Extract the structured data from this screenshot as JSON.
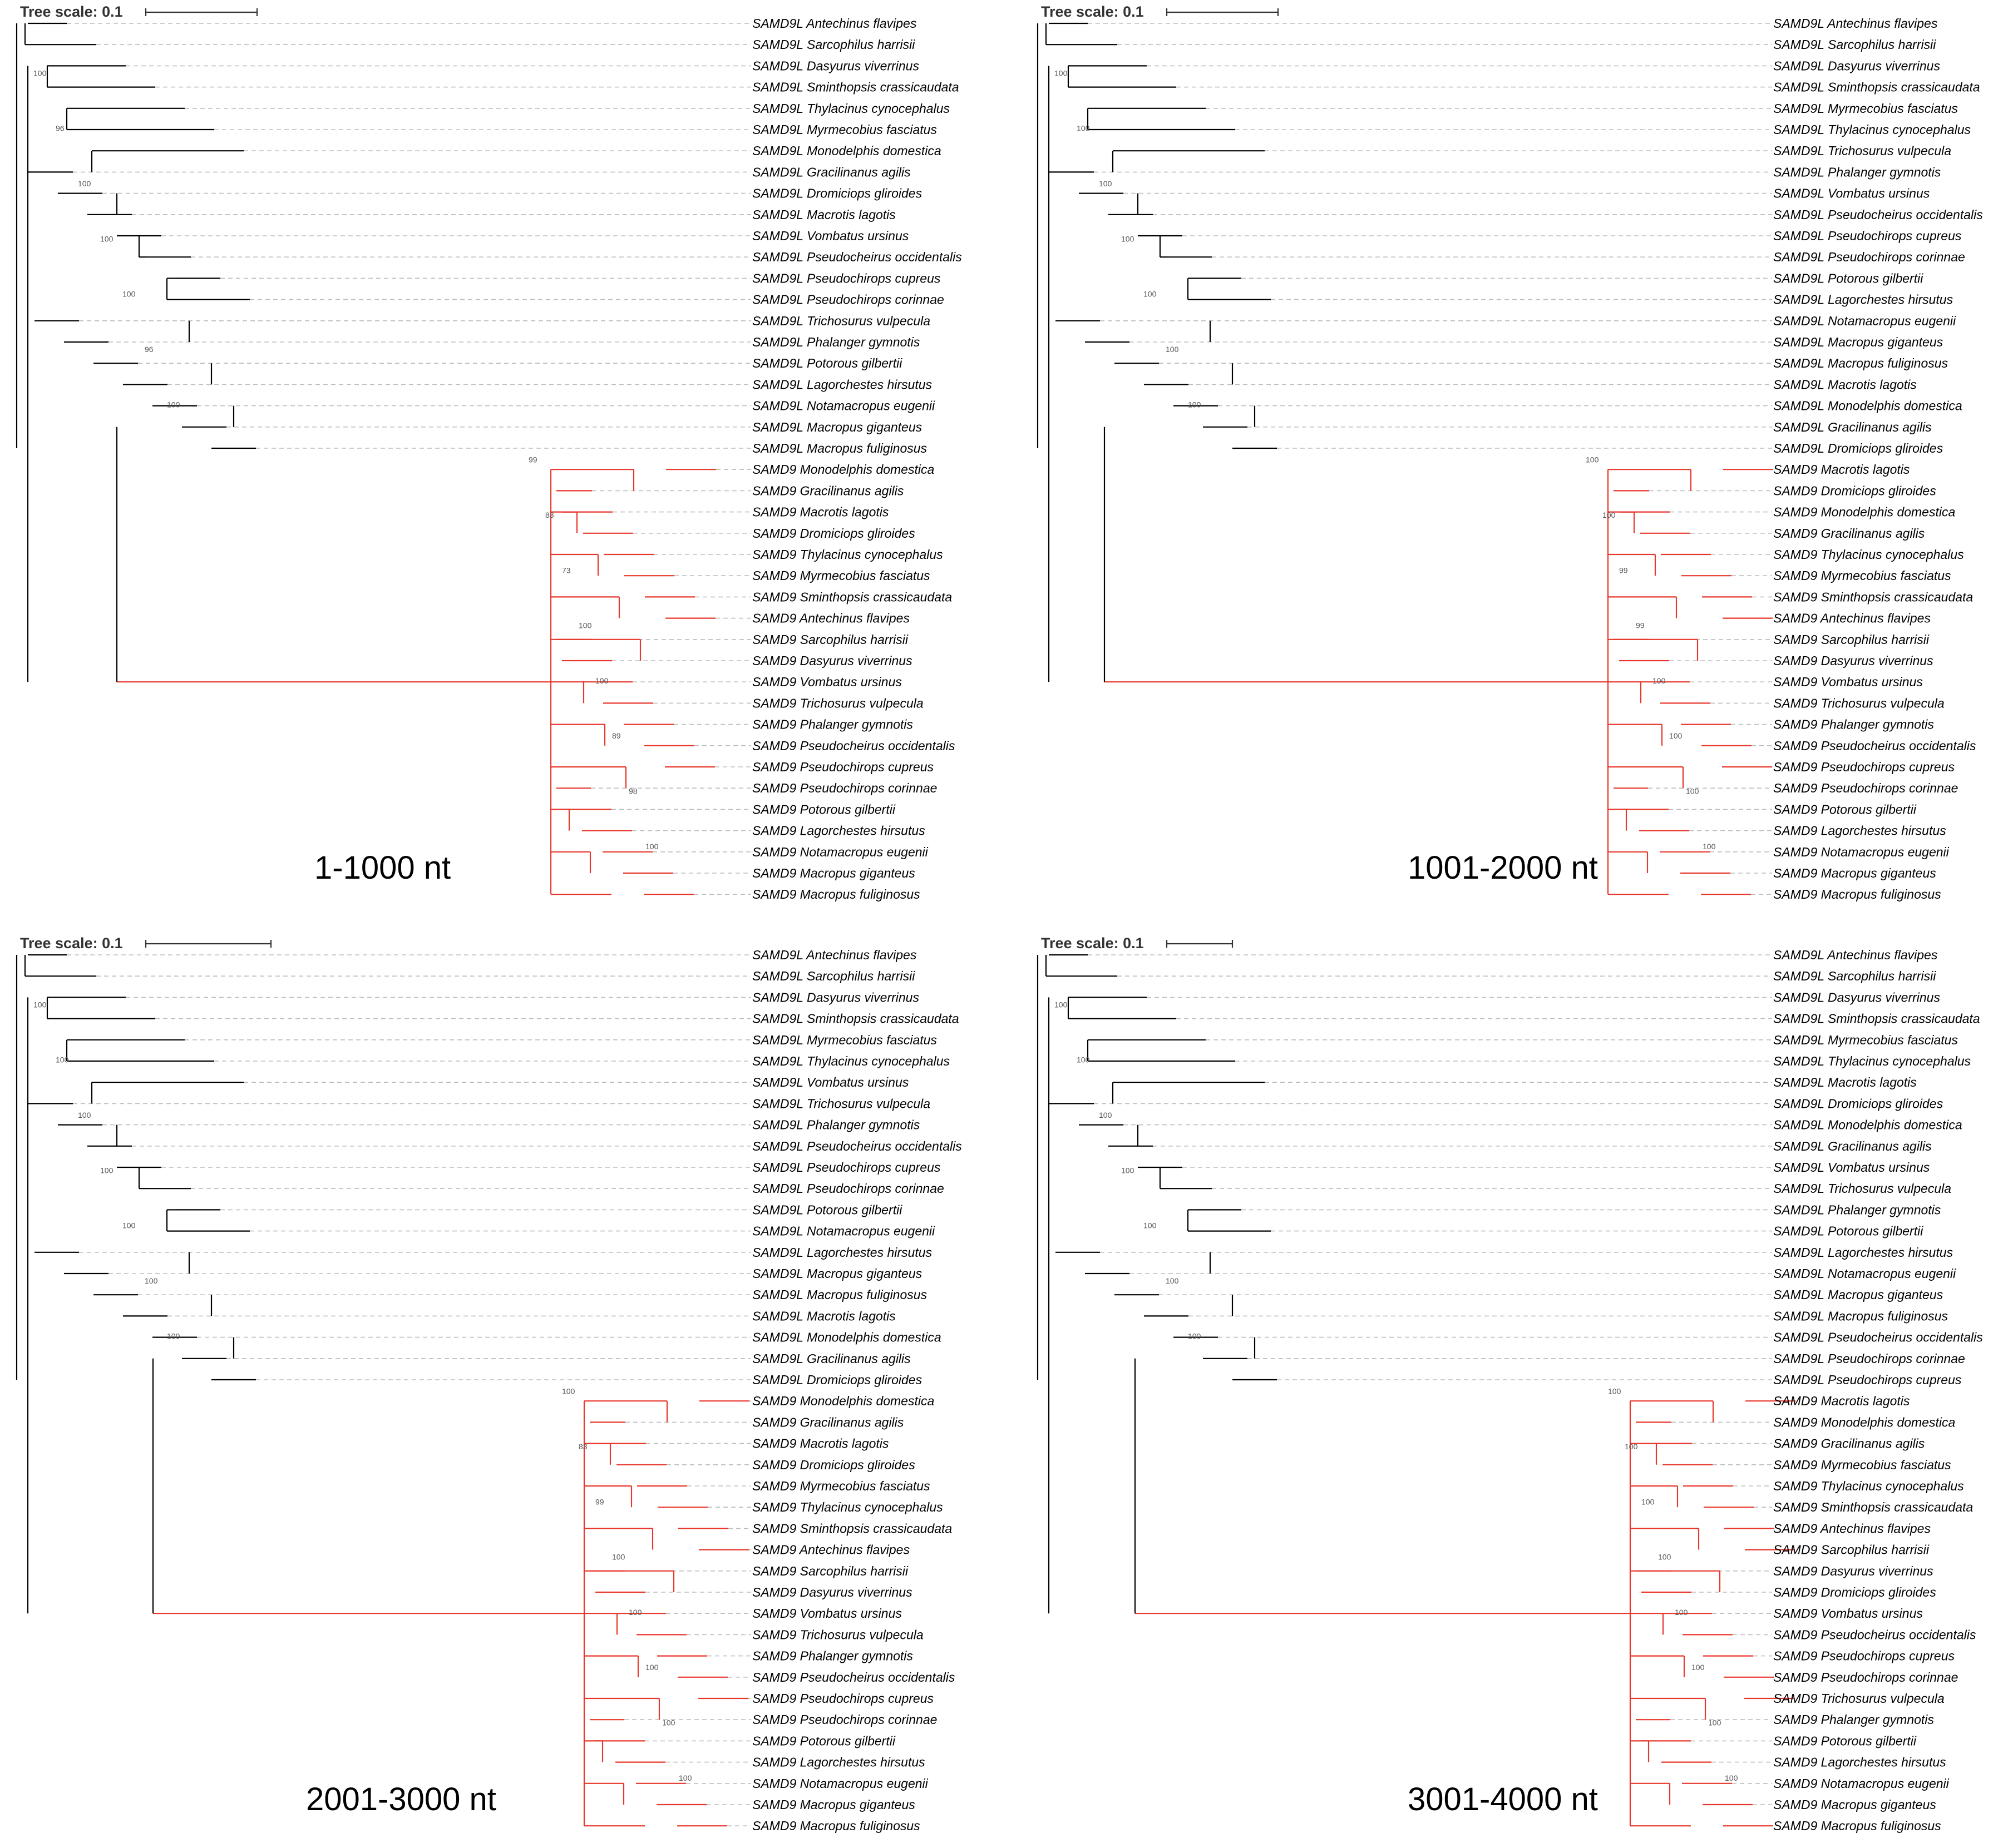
{
  "figure": {
    "colors": {
      "SAMD9L": "#000000",
      "SAMD9": "#e8372c",
      "guide": "#bdbdbd"
    },
    "panels": [
      {
        "label": "1-1000 nt",
        "scale_label": "Tree scale: 0.1",
        "tips": [
          "SAMD9L Antechinus flavipes",
          "SAMD9L Sarcophilus harrisii",
          "SAMD9L Dasyurus viverrinus",
          "SAMD9L Sminthopsis crassicaudata",
          "SAMD9L Thylacinus cynocephalus",
          "SAMD9L Myrmecobius fasciatus",
          "SAMD9L Monodelphis domestica",
          "SAMD9L Gracilinanus agilis",
          "SAMD9L Dromiciops gliroides",
          "SAMD9L Macrotis lagotis",
          "SAMD9L Vombatus ursinus",
          "SAMD9L Pseudocheirus occidentalis",
          "SAMD9L Pseudochirops cupreus",
          "SAMD9L Pseudochirops corinnae",
          "SAMD9L Trichosurus vulpecula",
          "SAMD9L Phalanger gymnotis",
          "SAMD9L Potorous gilbertii",
          "SAMD9L Lagorchestes hirsutus",
          "SAMD9L Notamacropus eugenii",
          "SAMD9L Macropus giganteus",
          "SAMD9L Macropus fuliginosus",
          "SAMD9 Monodelphis domestica",
          "SAMD9 Gracilinanus agilis",
          "SAMD9 Macrotis lagotis",
          "SAMD9 Dromiciops gliroides",
          "SAMD9 Thylacinus cynocephalus",
          "SAMD9 Myrmecobius fasciatus",
          "SAMD9 Sminthopsis crassicaudata",
          "SAMD9 Antechinus flavipes",
          "SAMD9 Sarcophilus harrisii",
          "SAMD9 Dasyurus viverrinus",
          "SAMD9 Vombatus ursinus",
          "SAMD9 Trichosurus vulpecula",
          "SAMD9 Phalanger gymnotis",
          "SAMD9 Pseudocheirus occidentalis",
          "SAMD9 Pseudochirops cupreus",
          "SAMD9 Pseudochirops corinnae",
          "SAMD9 Potorous gilbertii",
          "SAMD9 Lagorchestes hirsutus",
          "SAMD9 Notamacropus eugenii",
          "SAMD9 Macropus giganteus",
          "SAMD9 Macropus fuliginosus"
        ],
        "support": [
          "100",
          "96",
          "100",
          "100",
          "100",
          "96",
          "100",
          "99",
          "83",
          "73",
          "100",
          "100",
          "89",
          "98",
          "100"
        ]
      },
      {
        "label": "1001-2000 nt",
        "scale_label": "Tree scale: 0.1",
        "tips": [
          "SAMD9L Antechinus flavipes",
          "SAMD9L Sarcophilus harrisii",
          "SAMD9L Dasyurus viverrinus",
          "SAMD9L Sminthopsis crassicaudata",
          "SAMD9L Myrmecobius fasciatus",
          "SAMD9L Thylacinus cynocephalus",
          "SAMD9L Trichosurus vulpecula",
          "SAMD9L Phalanger gymnotis",
          "SAMD9L Vombatus ursinus",
          "SAMD9L Pseudocheirus occidentalis",
          "SAMD9L Pseudochirops cupreus",
          "SAMD9L Pseudochirops corinnae",
          "SAMD9L Potorous gilbertii",
          "SAMD9L Lagorchestes hirsutus",
          "SAMD9L Notamacropus eugenii",
          "SAMD9L Macropus giganteus",
          "SAMD9L Macropus fuliginosus",
          "SAMD9L Macrotis lagotis",
          "SAMD9L Monodelphis domestica",
          "SAMD9L Gracilinanus agilis",
          "SAMD9L Dromiciops gliroides",
          "SAMD9 Macrotis lagotis",
          "SAMD9 Dromiciops gliroides",
          "SAMD9 Monodelphis domestica",
          "SAMD9 Gracilinanus agilis",
          "SAMD9 Thylacinus cynocephalus",
          "SAMD9 Myrmecobius fasciatus",
          "SAMD9 Sminthopsis crassicaudata",
          "SAMD9 Antechinus flavipes",
          "SAMD9 Sarcophilus harrisii",
          "SAMD9 Dasyurus viverrinus",
          "SAMD9 Vombatus ursinus",
          "SAMD9 Trichosurus vulpecula",
          "SAMD9 Phalanger gymnotis",
          "SAMD9 Pseudocheirus occidentalis",
          "SAMD9 Pseudochirops cupreus",
          "SAMD9 Pseudochirops corinnae",
          "SAMD9 Potorous gilbertii",
          "SAMD9 Lagorchestes hirsutus",
          "SAMD9 Notamacropus eugenii",
          "SAMD9 Macropus giganteus",
          "SAMD9 Macropus fuliginosus"
        ],
        "support": [
          "100",
          "100",
          "100",
          "100",
          "100",
          "100",
          "100",
          "100",
          "100",
          "99",
          "99",
          "100",
          "100",
          "100",
          "100"
        ]
      },
      {
        "label": "2001-3000 nt",
        "scale_label": "Tree scale: 0.1",
        "tips": [
          "SAMD9L Antechinus flavipes",
          "SAMD9L Sarcophilus harrisii",
          "SAMD9L Dasyurus viverrinus",
          "SAMD9L Sminthopsis crassicaudata",
          "SAMD9L Myrmecobius fasciatus",
          "SAMD9L Thylacinus cynocephalus",
          "SAMD9L Vombatus ursinus",
          "SAMD9L Trichosurus vulpecula",
          "SAMD9L Phalanger gymnotis",
          "SAMD9L Pseudocheirus occidentalis",
          "SAMD9L Pseudochirops cupreus",
          "SAMD9L Pseudochirops corinnae",
          "SAMD9L Potorous gilbertii",
          "SAMD9L Notamacropus eugenii",
          "SAMD9L Lagorchestes hirsutus",
          "SAMD9L Macropus giganteus",
          "SAMD9L Macropus fuliginosus",
          "SAMD9L Macrotis lagotis",
          "SAMD9L Monodelphis domestica",
          "SAMD9L Gracilinanus agilis",
          "SAMD9L Dromiciops gliroides",
          "SAMD9 Monodelphis domestica",
          "SAMD9 Gracilinanus agilis",
          "SAMD9 Macrotis lagotis",
          "SAMD9 Dromiciops gliroides",
          "SAMD9 Myrmecobius fasciatus",
          "SAMD9 Thylacinus cynocephalus",
          "SAMD9 Sminthopsis crassicaudata",
          "SAMD9 Antechinus flavipes",
          "SAMD9 Sarcophilus harrisii",
          "SAMD9 Dasyurus viverrinus",
          "SAMD9 Vombatus ursinus",
          "SAMD9 Trichosurus vulpecula",
          "SAMD9 Phalanger gymnotis",
          "SAMD9 Pseudocheirus occidentalis",
          "SAMD9 Pseudochirops cupreus",
          "SAMD9 Pseudochirops corinnae",
          "SAMD9 Potorous gilbertii",
          "SAMD9 Lagorchestes hirsutus",
          "SAMD9 Notamacropus eugenii",
          "SAMD9 Macropus giganteus",
          "SAMD9 Macropus fuliginosus"
        ],
        "support": [
          "100",
          "100",
          "100",
          "100",
          "100",
          "100",
          "100",
          "100",
          "83",
          "99",
          "100",
          "100",
          "100",
          "100",
          "100"
        ]
      },
      {
        "label": "3001-4000 nt",
        "scale_label": "Tree scale: 0.1",
        "tips": [
          "SAMD9L Antechinus flavipes",
          "SAMD9L Sarcophilus harrisii",
          "SAMD9L Dasyurus viverrinus",
          "SAMD9L Sminthopsis crassicaudata",
          "SAMD9L Myrmecobius fasciatus",
          "SAMD9L Thylacinus cynocephalus",
          "SAMD9L Macrotis lagotis",
          "SAMD9L Dromiciops gliroides",
          "SAMD9L Monodelphis domestica",
          "SAMD9L Gracilinanus agilis",
          "SAMD9L Vombatus ursinus",
          "SAMD9L Trichosurus vulpecula",
          "SAMD9L Phalanger gymnotis",
          "SAMD9L Potorous gilbertii",
          "SAMD9L Lagorchestes hirsutus",
          "SAMD9L Notamacropus eugenii",
          "SAMD9L Macropus giganteus",
          "SAMD9L Macropus fuliginosus",
          "SAMD9L Pseudocheirus occidentalis",
          "SAMD9L Pseudochirops corinnae",
          "SAMD9L Pseudochirops cupreus",
          "SAMD9 Macrotis lagotis",
          "SAMD9 Monodelphis domestica",
          "SAMD9 Gracilinanus agilis",
          "SAMD9 Myrmecobius fasciatus",
          "SAMD9 Thylacinus cynocephalus",
          "SAMD9 Sminthopsis crassicaudata",
          "SAMD9 Antechinus flavipes",
          "SAMD9 Sarcophilus harrisii",
          "SAMD9 Dasyurus viverrinus",
          "SAMD9 Dromiciops gliroides",
          "SAMD9 Vombatus ursinus",
          "SAMD9 Pseudocheirus occidentalis",
          "SAMD9 Pseudochirops cupreus",
          "SAMD9 Pseudochirops corinnae",
          "SAMD9 Trichosurus vulpecula",
          "SAMD9 Phalanger gymnotis",
          "SAMD9 Potorous gilbertii",
          "SAMD9 Lagorchestes hirsutus",
          "SAMD9 Notamacropus eugenii",
          "SAMD9 Macropus giganteus",
          "SAMD9 Macropus fuliginosus"
        ],
        "support": [
          "100",
          "100",
          "100",
          "100",
          "100",
          "100",
          "100",
          "100",
          "100",
          "100",
          "100",
          "100",
          "100",
          "100",
          "100"
        ]
      }
    ]
  }
}
